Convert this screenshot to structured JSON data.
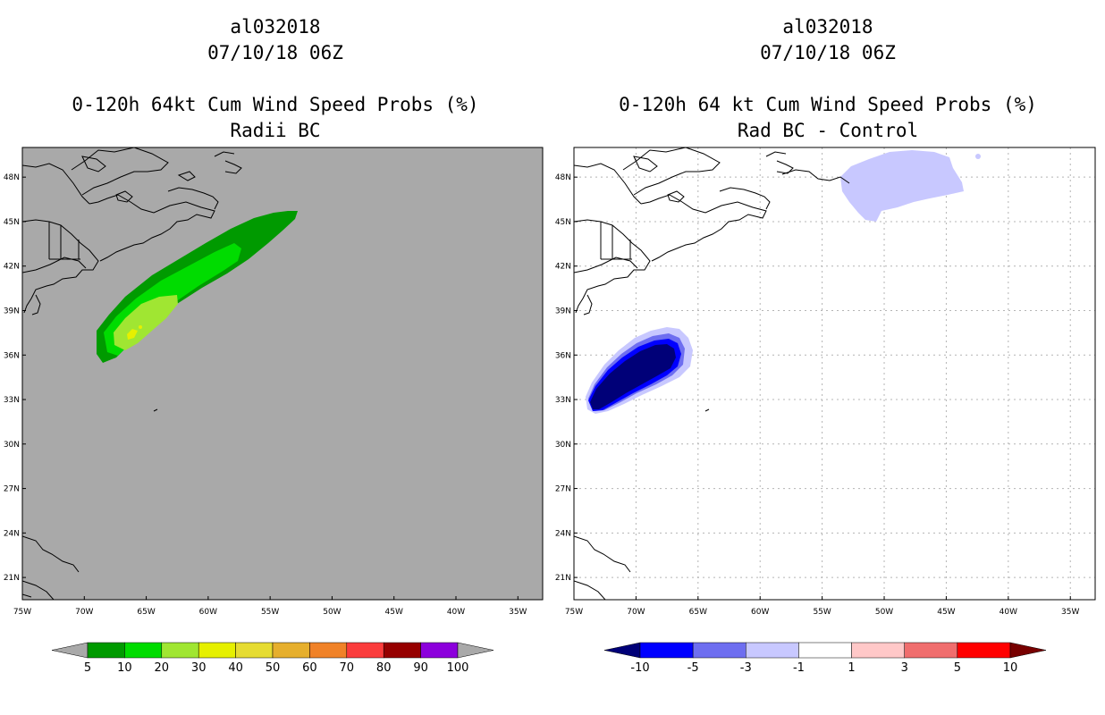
{
  "panels": [
    {
      "storm_id": "al032018",
      "datetime": "07/10/18 06Z",
      "product": "0-120h 64kt Cum Wind Speed Probs (%)",
      "subtitle": "Radii BC",
      "background_color": "#a9a9a9",
      "colorbar_labels": [
        "5",
        "10",
        "20",
        "30",
        "40",
        "50",
        "60",
        "70",
        "80",
        "90",
        "100"
      ],
      "colorbar_colors": [
        "#009a00",
        "#00dc00",
        "#a0e632",
        "#e6f000",
        "#e6dc32",
        "#e6af2d",
        "#f08228",
        "#fa3c3c",
        "#960000",
        "#8c00dc"
      ],
      "colorbar_under": "#a9a9a9",
      "colorbar_over": "#a9a9a9"
    },
    {
      "storm_id": "al032018",
      "datetime": "07/10/18 06Z",
      "product": "0-120h 64 kt Cum Wind Speed Probs (%)",
      "subtitle": "Rad BC - Control",
      "background_color": "#ffffff",
      "colorbar_labels": [
        "-10",
        "-5",
        "-3",
        "-1",
        "1",
        "3",
        "5",
        "10"
      ],
      "colorbar_colors": [
        "#0000ff",
        "#6e6ef0",
        "#c8c8ff",
        "#ffffff",
        "#ffc8c8",
        "#f06e6e",
        "#ff0000"
      ],
      "colorbar_under": "#000078",
      "colorbar_over": "#780000"
    }
  ],
  "axes": {
    "lon_labels": [
      "75W",
      "70W",
      "65W",
      "60W",
      "55W",
      "50W",
      "45W",
      "40W",
      "35W"
    ],
    "lat_labels": [
      "21N",
      "24N",
      "27N",
      "30N",
      "33N",
      "36N",
      "39N",
      "42N",
      "45N",
      "48N"
    ]
  },
  "map_extent": {
    "lon_min": -75,
    "lon_max": -33,
    "lat_min": 19.5,
    "lat_max": 50
  }
}
